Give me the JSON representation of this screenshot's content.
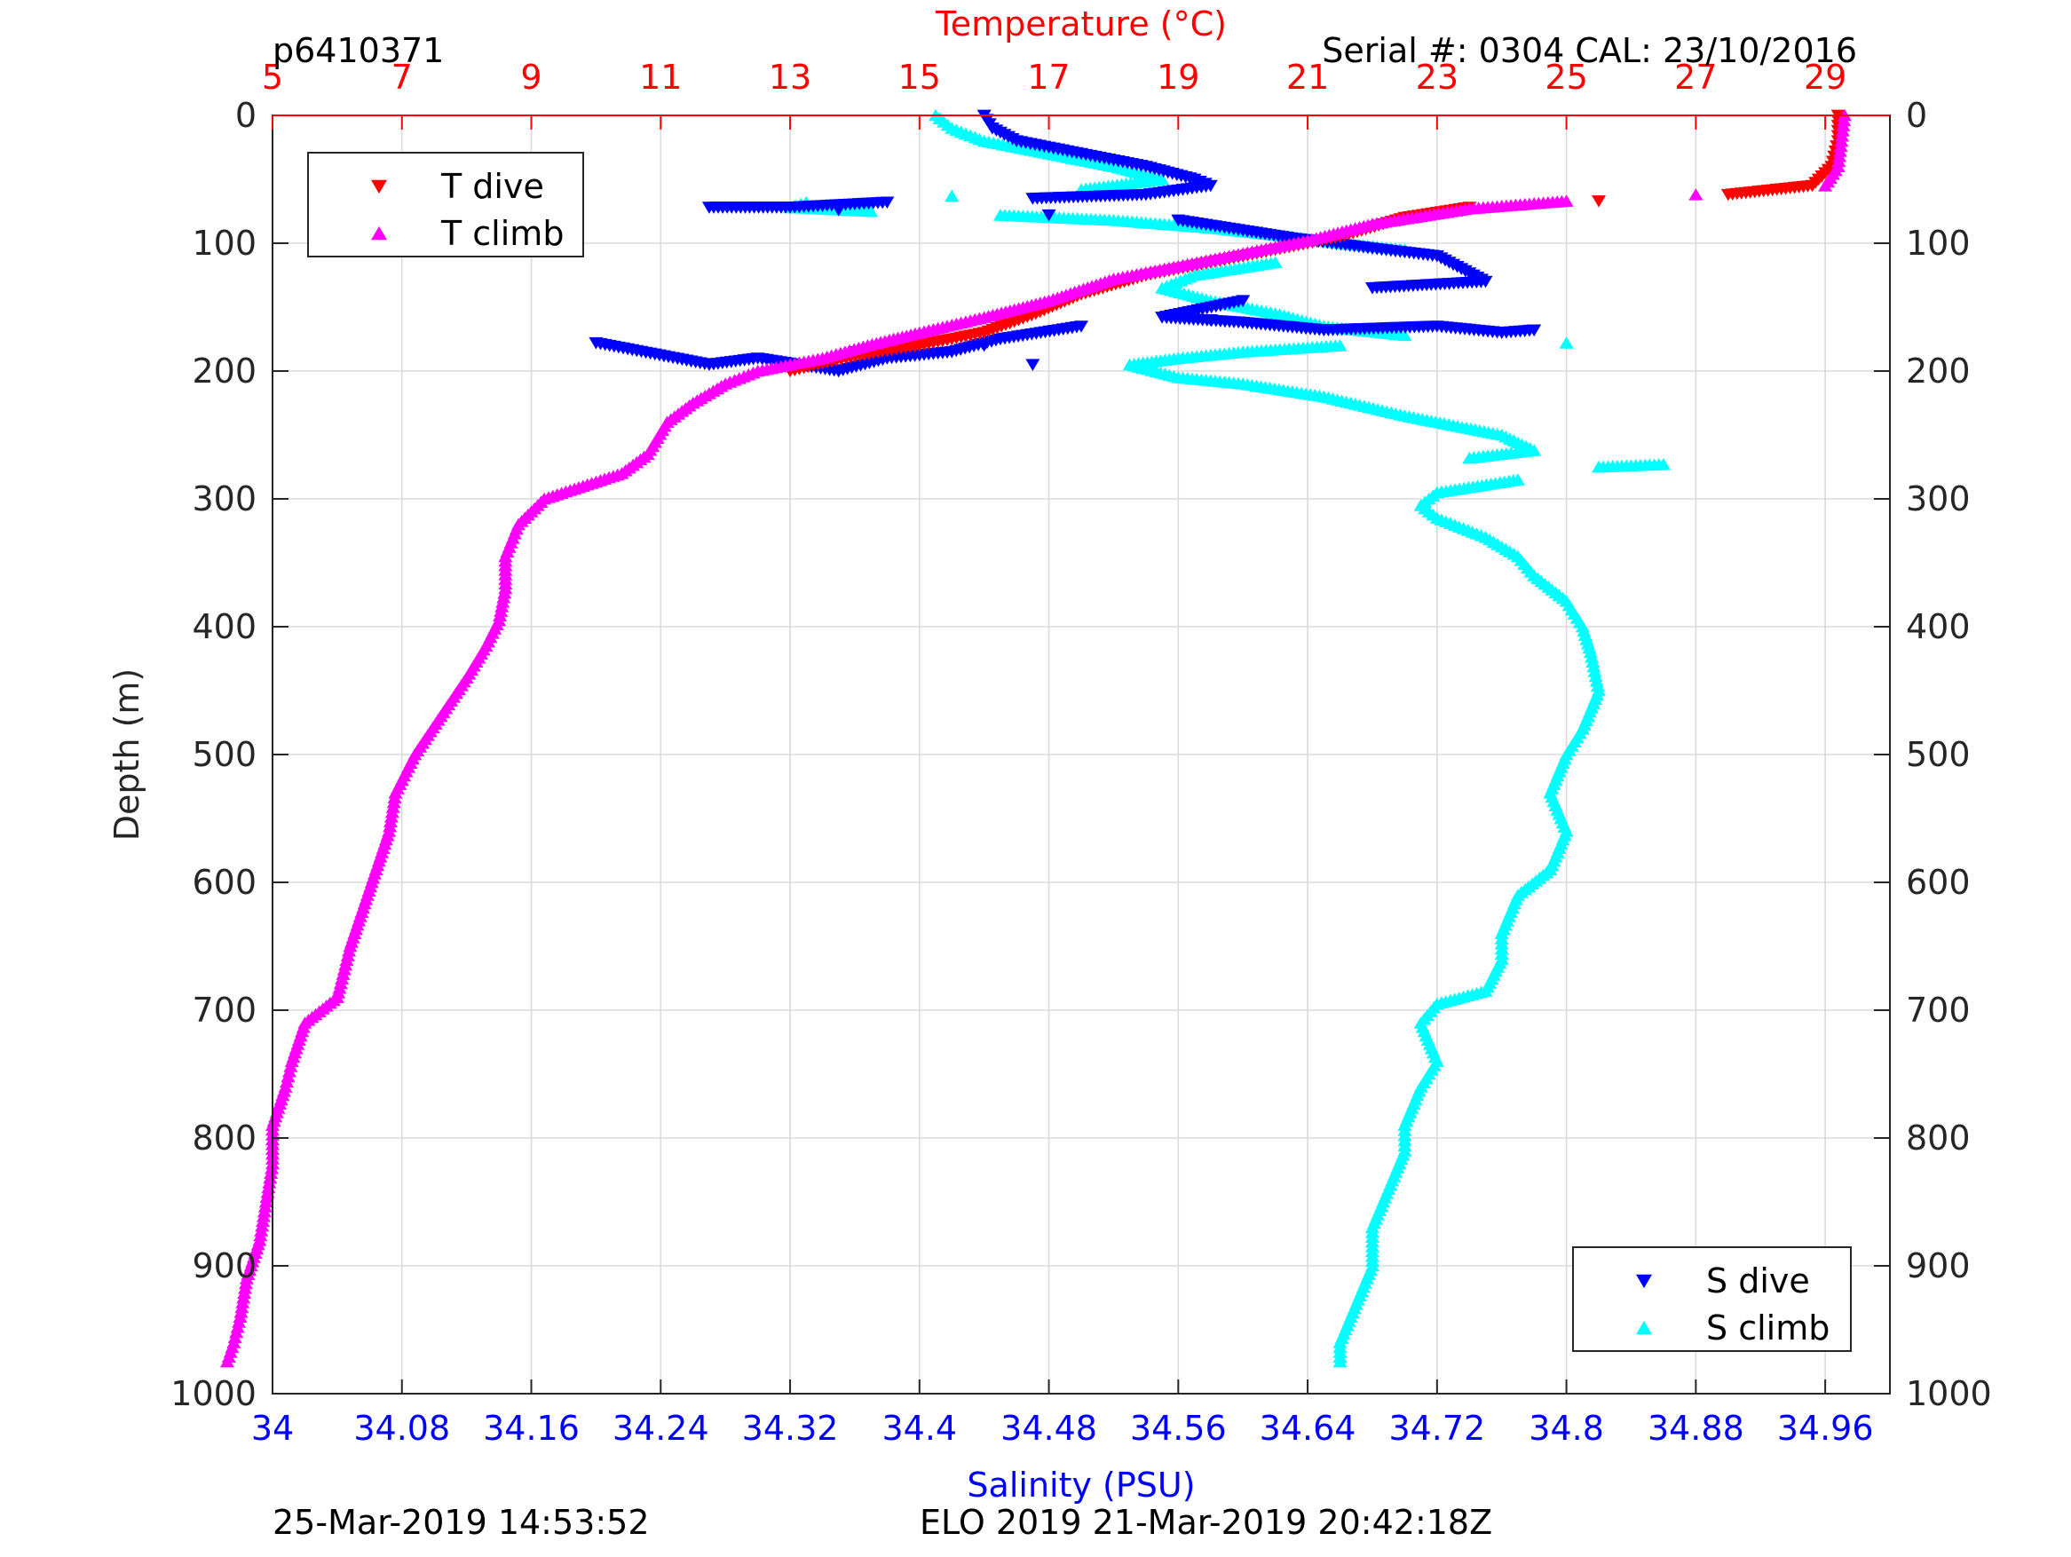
{
  "header": {
    "profile_id": "p6410371",
    "serial": "Serial #: 0304  CAL: 23/10/2016"
  },
  "footer": {
    "plot_time": "25-Mar-2019 14:53:52",
    "mission": "ELO 2019 21-Mar-2019 20:42:18Z"
  },
  "colors": {
    "temperature_axis": "#ff0000",
    "salinity_axis": "#0000ff",
    "t_dive": "#ff0000",
    "t_climb": "#ff00ff",
    "s_dive": "#0000ff",
    "s_climb": "#00ffff",
    "temp_grid": "#ffc8c8",
    "depth_grid": "#dcdcdc"
  },
  "chart_data": {
    "type": "scatter",
    "top_axis": {
      "label": "Temperature (°C)",
      "range": [
        5,
        30
      ],
      "ticks": [
        "5",
        "7",
        "9",
        "11",
        "13",
        "15",
        "17",
        "19",
        "21",
        "23",
        "25",
        "27",
        "29"
      ]
    },
    "bottom_axis": {
      "label": "Salinity (PSU)",
      "range": [
        34.0,
        35.0
      ],
      "ticks": [
        "34",
        "34.08",
        "34.16",
        "34.24",
        "34.32",
        "34.4",
        "34.48",
        "34.56",
        "34.64",
        "34.72",
        "34.8",
        "34.88",
        "34.96"
      ]
    },
    "y_axis": {
      "label": "Depth (m)",
      "range": [
        0,
        1000
      ],
      "reversed": true,
      "ticks": [
        "0",
        "100",
        "200",
        "300",
        "400",
        "500",
        "600",
        "700",
        "800",
        "900",
        "1000"
      ]
    },
    "grid": true,
    "legends": [
      {
        "placement": "top-left",
        "entries": [
          "T dive",
          "T climb"
        ]
      },
      {
        "placement": "bottom-right",
        "entries": [
          "S dive",
          "S climb"
        ]
      }
    ],
    "series": [
      {
        "name": "T dive",
        "axis": "temperature",
        "marker": "triangle-down",
        "points": [
          [
            29.2,
            0
          ],
          [
            29.2,
            20
          ],
          [
            29.1,
            40
          ],
          [
            28.8,
            55
          ],
          [
            27.5,
            62
          ],
          [
            25.5,
            67
          ],
          [
            23.5,
            72
          ],
          [
            22.5,
            80
          ],
          [
            21.5,
            95
          ],
          [
            20.5,
            105
          ],
          [
            19.5,
            115
          ],
          [
            18.5,
            125
          ],
          [
            17.5,
            140
          ],
          [
            16.8,
            155
          ],
          [
            16.0,
            170
          ],
          [
            15.0,
            180
          ],
          [
            14.0,
            188
          ],
          [
            13.0,
            200
          ],
          [
            13.3,
            195
          ],
          [
            14.5,
            184
          ]
        ]
      },
      {
        "name": "T climb",
        "axis": "temperature",
        "marker": "triangle-up",
        "points": [
          [
            29.3,
            0
          ],
          [
            29.25,
            20
          ],
          [
            29.2,
            40
          ],
          [
            29.0,
            55
          ],
          [
            27.0,
            62
          ],
          [
            25.0,
            67
          ],
          [
            23.5,
            73
          ],
          [
            22.0,
            85
          ],
          [
            21.0,
            98
          ],
          [
            20.0,
            108
          ],
          [
            19.0,
            118
          ],
          [
            18.0,
            128
          ],
          [
            17.0,
            145
          ],
          [
            16.0,
            158
          ],
          [
            15.0,
            170
          ],
          [
            14.2,
            180
          ],
          [
            13.5,
            190
          ],
          [
            12.5,
            200
          ],
          [
            12.0,
            210
          ],
          [
            11.5,
            225
          ],
          [
            11.1,
            240
          ],
          [
            10.8,
            265
          ],
          [
            10.4,
            280
          ],
          [
            9.8,
            290
          ],
          [
            9.2,
            300
          ],
          [
            8.8,
            320
          ],
          [
            8.6,
            345
          ],
          [
            8.6,
            370
          ],
          [
            8.5,
            395
          ],
          [
            8.3,
            415
          ],
          [
            8.0,
            440
          ],
          [
            7.6,
            470
          ],
          [
            7.2,
            500
          ],
          [
            6.9,
            530
          ],
          [
            6.8,
            560
          ],
          [
            6.6,
            590
          ],
          [
            6.4,
            620
          ],
          [
            6.2,
            650
          ],
          [
            6.0,
            690
          ],
          [
            5.5,
            710
          ],
          [
            5.3,
            740
          ],
          [
            5.2,
            760
          ],
          [
            5.0,
            790
          ],
          [
            5.0,
            820
          ],
          [
            4.9,
            850
          ],
          [
            4.8,
            880
          ],
          [
            4.6,
            910
          ],
          [
            4.5,
            940
          ],
          [
            4.4,
            960
          ],
          [
            4.3,
            975
          ]
        ]
      },
      {
        "name": "S dive",
        "axis": "salinity",
        "marker": "triangle-down",
        "points": [
          [
            34.44,
            0
          ],
          [
            34.445,
            10
          ],
          [
            34.46,
            20
          ],
          [
            34.5,
            30
          ],
          [
            34.54,
            40
          ],
          [
            34.57,
            50
          ],
          [
            34.58,
            55
          ],
          [
            34.54,
            62
          ],
          [
            34.47,
            65
          ],
          [
            34.38,
            68
          ],
          [
            34.32,
            72
          ],
          [
            34.27,
            72
          ],
          [
            34.35,
            74
          ],
          [
            34.48,
            78
          ],
          [
            34.56,
            82
          ],
          [
            34.6,
            90
          ],
          [
            34.63,
            96
          ],
          [
            34.68,
            104
          ],
          [
            34.72,
            110
          ],
          [
            34.75,
            130
          ],
          [
            34.68,
            135
          ],
          [
            34.6,
            145
          ],
          [
            34.55,
            158
          ],
          [
            34.6,
            162
          ],
          [
            34.65,
            168
          ],
          [
            34.72,
            165
          ],
          [
            34.76,
            170
          ],
          [
            34.78,
            168
          ],
          [
            34.58,
            160
          ],
          [
            34.5,
            165
          ],
          [
            34.45,
            175
          ],
          [
            34.42,
            185
          ],
          [
            34.38,
            190
          ],
          [
            34.35,
            200
          ],
          [
            34.3,
            190
          ],
          [
            34.27,
            195
          ],
          [
            34.2,
            178
          ],
          [
            34.47,
            195
          ],
          [
            34.36,
            185
          ],
          [
            34.44,
            180
          ]
        ]
      },
      {
        "name": "S climb",
        "axis": "salinity",
        "marker": "triangle-up",
        "points": [
          [
            34.41,
            0
          ],
          [
            34.42,
            10
          ],
          [
            34.44,
            20
          ],
          [
            34.48,
            30
          ],
          [
            34.52,
            40
          ],
          [
            34.55,
            50
          ],
          [
            34.5,
            58
          ],
          [
            34.42,
            63
          ],
          [
            34.33,
            68
          ],
          [
            34.32,
            72
          ],
          [
            34.37,
            75
          ],
          [
            34.45,
            78
          ],
          [
            34.52,
            82
          ],
          [
            34.58,
            88
          ],
          [
            34.63,
            95
          ],
          [
            34.66,
            100
          ],
          [
            34.7,
            105
          ],
          [
            34.62,
            115
          ],
          [
            34.57,
            125
          ],
          [
            34.55,
            135
          ],
          [
            34.58,
            145
          ],
          [
            34.62,
            155
          ],
          [
            34.65,
            165
          ],
          [
            34.7,
            172
          ],
          [
            34.8,
            178
          ],
          [
            34.66,
            180
          ],
          [
            34.6,
            185
          ],
          [
            34.56,
            190
          ],
          [
            34.53,
            195
          ],
          [
            34.56,
            205
          ],
          [
            34.6,
            210
          ],
          [
            34.65,
            220
          ],
          [
            34.7,
            235
          ],
          [
            34.76,
            250
          ],
          [
            34.78,
            262
          ],
          [
            34.74,
            268
          ],
          [
            34.82,
            275
          ],
          [
            34.86,
            273
          ],
          [
            34.77,
            285
          ],
          [
            34.72,
            295
          ],
          [
            34.71,
            305
          ],
          [
            34.72,
            315
          ],
          [
            34.75,
            330
          ],
          [
            34.77,
            345
          ],
          [
            34.78,
            360
          ],
          [
            34.8,
            380
          ],
          [
            34.81,
            400
          ],
          [
            34.815,
            420
          ],
          [
            34.82,
            450
          ],
          [
            34.81,
            480
          ],
          [
            34.8,
            500
          ],
          [
            34.79,
            530
          ],
          [
            34.8,
            560
          ],
          [
            34.79,
            590
          ],
          [
            34.77,
            610
          ],
          [
            34.76,
            640
          ],
          [
            34.76,
            660
          ],
          [
            34.75,
            685
          ],
          [
            34.72,
            695
          ],
          [
            34.71,
            710
          ],
          [
            34.72,
            740
          ],
          [
            34.71,
            760
          ],
          [
            34.7,
            790
          ],
          [
            34.7,
            810
          ],
          [
            34.69,
            840
          ],
          [
            34.68,
            870
          ],
          [
            34.68,
            900
          ],
          [
            34.67,
            930
          ],
          [
            34.66,
            960
          ],
          [
            34.66,
            975
          ]
        ]
      }
    ]
  }
}
